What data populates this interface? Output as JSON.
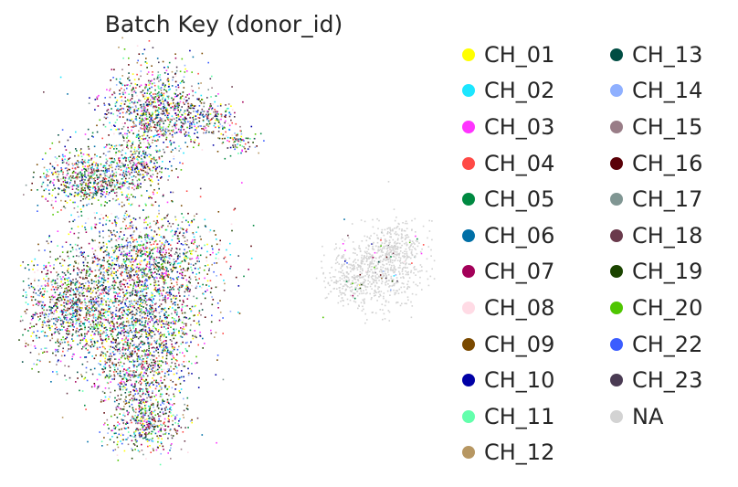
{
  "chart_data": {
    "type": "scatter",
    "title": "Batch Key (donor_id)",
    "xlabel": "",
    "ylabel": "",
    "axes_visible": false,
    "legend_position": "right",
    "legend_columns": 2,
    "categories": [
      "CH_01",
      "CH_02",
      "CH_03",
      "CH_04",
      "CH_05",
      "CH_06",
      "CH_07",
      "CH_08",
      "CH_09",
      "CH_10",
      "CH_11",
      "CH_12",
      "CH_13",
      "CH_14",
      "CH_15",
      "CH_16",
      "CH_17",
      "CH_18",
      "CH_19",
      "CH_20",
      "CH_22",
      "CH_23",
      "NA"
    ],
    "colors": [
      "#ffff00",
      "#1ce6ff",
      "#ff34ff",
      "#ff4a46",
      "#008941",
      "#006fa6",
      "#a30059",
      "#ffdbe5",
      "#7a4900",
      "#0000a6",
      "#63ffac",
      "#b79762",
      "#004d43",
      "#8fb0ff",
      "#997d87",
      "#5a0007",
      "#809693",
      "#6a3a4c",
      "#1b4400",
      "#4fc601",
      "#3b5dff",
      "#4a3b53",
      "#d3d3d3"
    ],
    "clusters": [
      {
        "cx": 0.32,
        "cy": 0.17,
        "sx": 0.065,
        "sy": 0.05,
        "n": 1000,
        "palette": "donors"
      },
      {
        "cx": 0.45,
        "cy": 0.19,
        "sx": 0.035,
        "sy": 0.02,
        "n": 180,
        "palette": "donors"
      },
      {
        "cx": 0.52,
        "cy": 0.24,
        "sx": 0.02,
        "sy": 0.015,
        "n": 80,
        "palette": "donors"
      },
      {
        "cx": 0.17,
        "cy": 0.33,
        "sx": 0.06,
        "sy": 0.035,
        "n": 700,
        "palette": "donors"
      },
      {
        "cx": 0.28,
        "cy": 0.3,
        "sx": 0.04,
        "sy": 0.03,
        "n": 300,
        "palette": "donors"
      },
      {
        "cx": 0.3,
        "cy": 0.52,
        "sx": 0.09,
        "sy": 0.06,
        "n": 1300,
        "palette": "donors"
      },
      {
        "cx": 0.12,
        "cy": 0.63,
        "sx": 0.06,
        "sy": 0.06,
        "n": 900,
        "palette": "donors"
      },
      {
        "cx": 0.28,
        "cy": 0.66,
        "sx": 0.08,
        "sy": 0.06,
        "n": 1100,
        "palette": "donors"
      },
      {
        "cx": 0.29,
        "cy": 0.78,
        "sx": 0.055,
        "sy": 0.05,
        "n": 600,
        "palette": "donors"
      },
      {
        "cx": 0.3,
        "cy": 0.9,
        "sx": 0.045,
        "sy": 0.035,
        "n": 500,
        "palette": "donors"
      },
      {
        "cx": 0.86,
        "cy": 0.54,
        "sx": 0.05,
        "sy": 0.045,
        "n": 600,
        "palette": "na"
      },
      {
        "cx": 0.9,
        "cy": 0.48,
        "sx": 0.035,
        "sy": 0.03,
        "n": 200,
        "palette": "na"
      },
      {
        "cx": 0.78,
        "cy": 0.57,
        "sx": 0.03,
        "sy": 0.03,
        "n": 150,
        "palette": "na"
      }
    ]
  }
}
